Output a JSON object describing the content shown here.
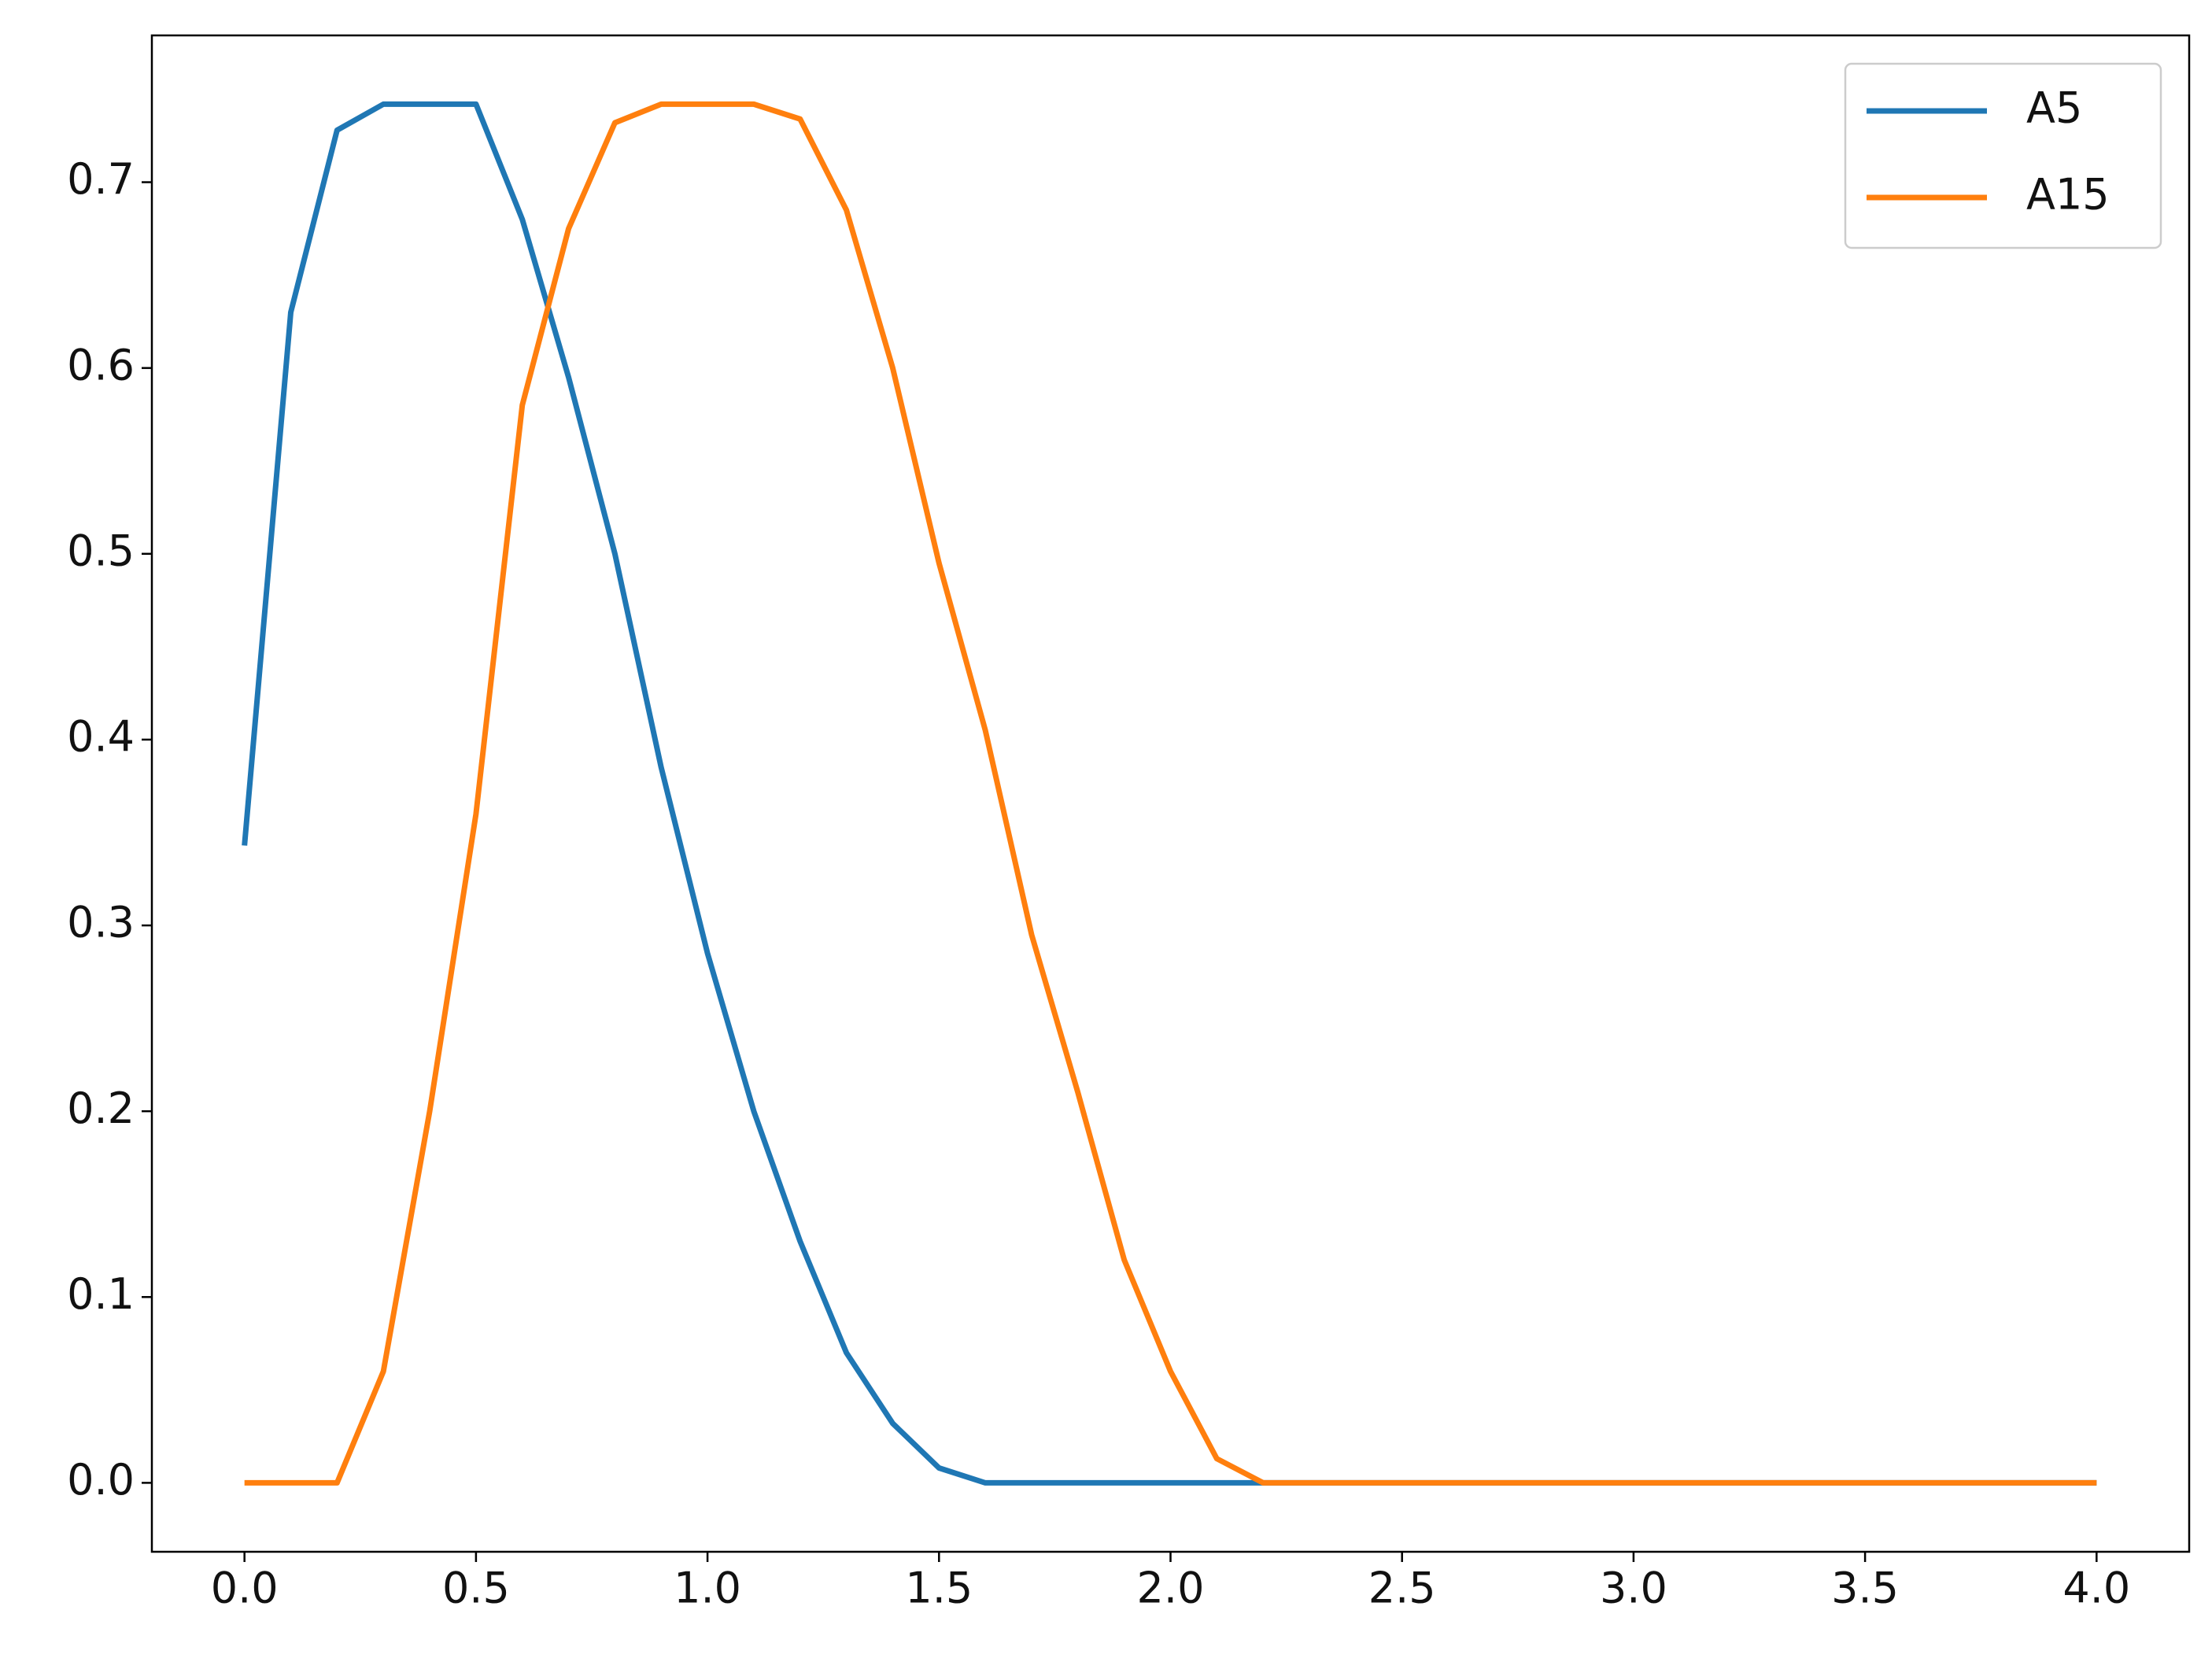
{
  "chart_data": {
    "type": "line",
    "x": [
      0,
      0.1,
      0.2,
      0.3,
      0.4,
      0.5,
      0.6,
      0.7,
      0.8,
      0.9,
      1,
      1.1,
      1.2,
      1.3,
      1.4,
      1.5,
      1.6,
      1.7,
      1.8,
      1.9,
      2,
      2.1,
      2.2,
      2.3,
      2.4,
      2.5,
      2.6,
      2.7,
      2.8,
      2.9,
      3,
      3.1,
      3.2,
      3.3,
      3.4,
      3.5,
      3.6,
      3.7,
      3.8,
      3.9,
      4
    ],
    "series": [
      {
        "name": "A5",
        "color": "#1f77b4",
        "values": [
          0.343,
          0.63,
          0.728,
          0.742,
          0.742,
          0.742,
          0.68,
          0.595,
          0.5,
          0.385,
          0.285,
          0.2,
          0.13,
          0.07,
          0.032,
          0.008,
          0,
          0,
          0,
          0,
          0,
          0,
          0,
          0,
          0,
          0,
          0,
          0,
          0,
          0,
          0,
          0,
          0,
          0,
          0,
          0,
          0,
          0,
          0,
          0,
          0
        ]
      },
      {
        "name": "A15",
        "color": "#ff7f0e",
        "values": [
          0,
          0,
          0,
          0.06,
          0.2,
          0.36,
          0.58,
          0.675,
          0.732,
          0.742,
          0.742,
          0.742,
          0.734,
          0.685,
          0.6,
          0.495,
          0.405,
          0.295,
          0.21,
          0.12,
          0.06,
          0.013,
          0,
          0,
          0,
          0,
          0,
          0,
          0,
          0,
          0,
          0,
          0,
          0,
          0,
          0,
          0,
          0,
          0,
          0,
          0
        ]
      }
    ],
    "xlim": [
      -0.2,
      4.2
    ],
    "xticks": [
      {
        "value": 0,
        "label": "0.0"
      },
      0.5,
      {
        "value": 1,
        "label": "1.0"
      },
      1.5,
      {
        "value": 2,
        "label": "2.0"
      },
      2.5,
      {
        "value": 3,
        "label": "3.0"
      },
      3.5,
      {
        "value": 4,
        "label": "4.0"
      }
    ],
    "ylim": [
      -0.0371,
      0.779
    ],
    "yticks": [
      {
        "value": 0,
        "label": "0.0"
      },
      0.1,
      0.2,
      0.3,
      0.4,
      0.5,
      0.6,
      0.7
    ],
    "grid": false,
    "legend": "upper-right"
  }
}
